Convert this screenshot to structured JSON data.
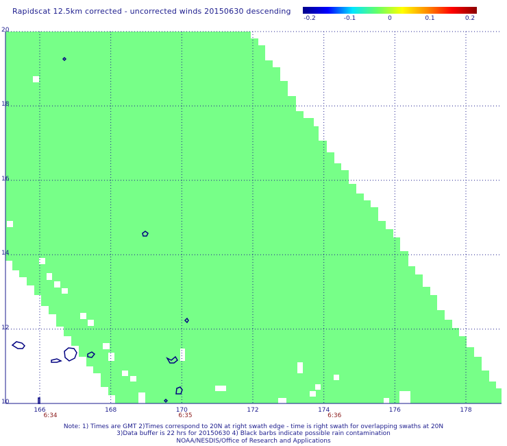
{
  "title": "Rapidscat 12.5km corrected - uncorrected winds 20150630 descending",
  "colorbar": {
    "labels": [
      "-0.2",
      "-0.1",
      "0",
      "0.1",
      "0.2"
    ],
    "values": [
      -0.2,
      -0.1,
      0,
      0.1,
      0.2
    ],
    "colors": [
      "#00008b",
      "#0000ff",
      "#00e6ff",
      "#66ff66",
      "#ffff00",
      "#ff8c00",
      "#ff0000",
      "#8b0000"
    ]
  },
  "map": {
    "lat_range": [
      10,
      20
    ],
    "lon_range": [
      165,
      179
    ],
    "lat_ticks": [
      "10",
      "12",
      "14",
      "16",
      "18",
      "20"
    ],
    "lon_ticks": [
      "166",
      "168",
      "170",
      "172",
      "174",
      "176",
      "178"
    ],
    "time_labels": [
      "6:34",
      "6:35",
      "6:36"
    ],
    "swath_fill_color": "#77ff88",
    "coastline_color": "#000080",
    "grid_style": "dotted"
  },
  "notes": [
    "Note: 1) Times are GMT 2)Times correspond to 20N at right swath edge - time is right swath for overlapping swaths at 20N",
    "3)Data buffer is 22 hrs for 20150630 4) Black barbs indicate possible rain contamination",
    "NOAA/NESDIS/Office of Research and Applications"
  ]
}
